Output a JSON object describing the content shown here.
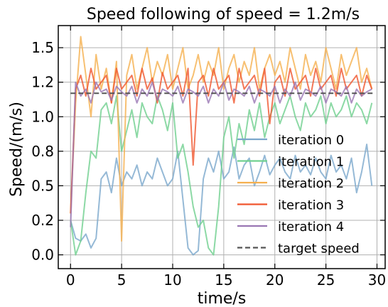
{
  "chart_data": {
    "type": "line",
    "title": "Speed following of speed = 1.2m/s",
    "xlabel": "time/s",
    "ylabel": "Speed/(m/s)",
    "xlim": [
      -1.2,
      30.8
    ],
    "ylim": [
      -0.1,
      1.66
    ],
    "xticks": [
      0,
      5,
      10,
      15,
      20,
      25,
      30
    ],
    "xtick_labels": [
      "0",
      "5",
      "10",
      "15",
      "20",
      "25",
      "30"
    ],
    "yticks": [
      0.0,
      0.25,
      0.5,
      0.75,
      1.0,
      1.25,
      1.5
    ],
    "ytick_labels": [
      "0.0",
      "0.2",
      "0.5",
      "0.8",
      "1.0",
      "1.2",
      "1.5"
    ],
    "grid": true,
    "legend_position": "lower-right",
    "target": {
      "name": "target speed",
      "value": 1.17,
      "color": "#555555",
      "style": "dashed"
    },
    "series": [
      {
        "name": "iteration 0",
        "color": "#7ba7cc",
        "x": [
          0,
          0.5,
          1,
          1.5,
          2,
          2.5,
          3,
          3.5,
          4,
          4.5,
          5,
          5.5,
          6,
          6.5,
          7,
          7.5,
          8,
          8.5,
          9,
          9.5,
          10,
          10.5,
          11,
          11.5,
          12,
          12.5,
          13,
          13.5,
          14,
          14.5,
          15,
          15.5,
          16,
          16.5,
          17,
          17.5,
          18,
          18.5,
          19,
          19.5,
          20,
          20.5,
          21,
          21.5,
          22,
          22.5,
          23,
          23.5,
          24,
          24.5,
          25,
          25.5,
          26,
          26.5,
          27,
          27.5,
          28,
          28.5,
          29,
          29.5
        ],
        "values": [
          0.25,
          0.12,
          0.1,
          0.15,
          0.05,
          0.12,
          0.55,
          0.6,
          0.45,
          0.7,
          0.5,
          0.6,
          0.55,
          0.65,
          0.5,
          0.6,
          0.55,
          0.7,
          0.6,
          0.5,
          0.55,
          0.75,
          0.4,
          0.05,
          0.0,
          0.03,
          0.55,
          0.7,
          0.6,
          0.75,
          0.55,
          0.6,
          0.78,
          0.55,
          0.65,
          0.7,
          0.5,
          0.6,
          0.72,
          0.58,
          0.65,
          0.7,
          0.6,
          0.55,
          0.72,
          0.6,
          0.65,
          0.58,
          0.7,
          0.6,
          0.55,
          0.72,
          0.6,
          0.65,
          0.55,
          0.7,
          0.45,
          0.6,
          0.8,
          0.5
        ]
      },
      {
        "name": "iteration 1",
        "color": "#6fd08f",
        "x": [
          0,
          0.5,
          1,
          1.5,
          2,
          2.5,
          3,
          3.5,
          4,
          4.5,
          5,
          5.5,
          6,
          6.5,
          7,
          7.5,
          8,
          8.5,
          9,
          9.5,
          10,
          10.5,
          11,
          11.5,
          12,
          12.5,
          13,
          13.5,
          14,
          14.5,
          15,
          15.5,
          16,
          16.5,
          17,
          17.5,
          18,
          18.5,
          19,
          19.5,
          20,
          20.5,
          21,
          21.5,
          22,
          22.5,
          23,
          23.5,
          24,
          24.5,
          25,
          25.5,
          26,
          26.5,
          27,
          27.5,
          28,
          28.5,
          29,
          29.5
        ],
        "values": [
          0.25,
          0.0,
          0.1,
          0.45,
          0.75,
          0.7,
          1.05,
          1.1,
          0.95,
          1.15,
          0.75,
          0.9,
          1.05,
          0.85,
          1.1,
          1.0,
          0.95,
          1.15,
          1.05,
          0.9,
          1.1,
          0.7,
          0.8,
          0.6,
          0.35,
          0.2,
          0.25,
          0.05,
          0.0,
          0.35,
          0.85,
          1.0,
          0.7,
          0.95,
          0.8,
          1.05,
          0.9,
          1.1,
          0.85,
          1.0,
          1.1,
          0.95,
          1.05,
          1.15,
          1.0,
          0.9,
          1.1,
          1.0,
          1.05,
          1.15,
          0.95,
          1.1,
          1.0,
          1.05,
          1.15,
          1.0,
          1.1,
          1.05,
          0.95,
          1.1
        ]
      },
      {
        "name": "iteration 2",
        "color": "#f5b04f",
        "x": [
          0,
          0.5,
          1,
          1.5,
          2,
          2.5,
          3,
          3.5,
          4,
          4.5,
          5,
          5.5,
          6,
          6.5,
          7,
          7.5,
          8,
          8.5,
          9,
          9.5,
          10,
          10.5,
          11,
          11.5,
          12,
          12.5,
          13,
          13.5,
          14,
          14.5,
          15,
          15.5,
          16,
          16.5,
          17,
          17.5,
          18,
          18.5,
          19,
          19.5,
          20,
          20.5,
          21,
          21.5,
          22,
          22.5,
          23,
          23.5,
          24,
          24.5,
          25,
          25.5,
          26,
          26.5,
          27,
          27.5,
          28,
          28.5,
          29,
          29.5
        ],
        "values": [
          0.3,
          1.1,
          1.58,
          1.3,
          1.0,
          1.45,
          1.2,
          1.35,
          1.1,
          1.4,
          0.1,
          1.3,
          1.45,
          1.2,
          1.35,
          1.5,
          1.25,
          1.4,
          1.3,
          1.45,
          1.2,
          1.35,
          1.5,
          1.2,
          1.3,
          1.45,
          1.25,
          1.4,
          1.3,
          1.5,
          1.2,
          1.35,
          1.45,
          1.25,
          1.4,
          1.3,
          1.5,
          1.2,
          1.35,
          1.45,
          1.3,
          1.4,
          1.25,
          1.5,
          1.35,
          1.2,
          1.45,
          1.3,
          1.4,
          1.25,
          1.5,
          1.35,
          1.2,
          1.45,
          1.3,
          1.4,
          1.5,
          1.25,
          1.35,
          1.2
        ]
      },
      {
        "name": "iteration 3",
        "color": "#f0562e",
        "x": [
          0,
          0.5,
          1,
          1.5,
          2,
          2.5,
          3,
          3.5,
          4,
          4.5,
          5,
          5.5,
          6,
          6.5,
          7,
          7.5,
          8,
          8.5,
          9,
          9.5,
          10,
          10.5,
          11,
          11.5,
          12,
          12.5,
          13,
          13.5,
          14,
          14.5,
          15,
          15.5,
          16,
          16.5,
          17,
          17.5,
          18,
          18.5,
          19,
          19.5,
          20,
          20.5,
          21,
          21.5,
          22,
          22.5,
          23,
          23.5,
          24,
          24.5,
          25,
          25.5,
          26,
          26.5,
          27,
          27.5,
          28,
          28.5,
          29,
          29.5
        ],
        "values": [
          0.3,
          1.2,
          1.3,
          1.15,
          1.35,
          1.2,
          1.25,
          1.3,
          1.1,
          1.35,
          1.2,
          1.25,
          1.3,
          1.15,
          1.35,
          1.2,
          1.28,
          1.1,
          1.32,
          1.2,
          1.25,
          1.3,
          1.15,
          1.35,
          0.65,
          1.25,
          1.3,
          1.15,
          1.35,
          1.2,
          1.25,
          1.3,
          1.1,
          1.35,
          1.2,
          1.25,
          1.3,
          1.15,
          1.35,
          0.95,
          1.25,
          1.3,
          1.15,
          1.35,
          1.2,
          1.25,
          1.3,
          1.15,
          1.35,
          1.2,
          1.25,
          1.3,
          1.15,
          1.35,
          1.2,
          1.25,
          1.3,
          1.15,
          1.3,
          1.2
        ]
      },
      {
        "name": "iteration 4",
        "color": "#9a77b4",
        "x": [
          0,
          0.5,
          1,
          1.5,
          2,
          2.5,
          3,
          3.5,
          4,
          4.5,
          5,
          5.5,
          6,
          6.5,
          7,
          7.5,
          8,
          8.5,
          9,
          9.5,
          10,
          10.5,
          11,
          11.5,
          12,
          12.5,
          13,
          13.5,
          14,
          14.5,
          15,
          15.5,
          16,
          16.5,
          17,
          17.5,
          18,
          18.5,
          19,
          19.5,
          20,
          20.5,
          21,
          21.5,
          22,
          22.5,
          23,
          23.5,
          24,
          24.5,
          25,
          25.5,
          26,
          26.5,
          27,
          27.5,
          28,
          28.5,
          29,
          29.5
        ],
        "values": [
          0.2,
          1.25,
          1.15,
          1.2,
          1.1,
          1.25,
          1.18,
          1.2,
          1.12,
          1.22,
          1.18,
          1.15,
          1.22,
          1.1,
          1.2,
          1.15,
          1.25,
          1.12,
          1.2,
          1.18,
          1.15,
          1.22,
          1.1,
          1.2,
          1.18,
          1.15,
          1.22,
          1.1,
          1.2,
          1.15,
          1.25,
          1.12,
          1.2,
          1.18,
          1.15,
          1.22,
          1.1,
          1.2,
          1.18,
          1.15,
          1.22,
          1.1,
          1.2,
          1.15,
          1.25,
          1.12,
          1.2,
          1.18,
          1.15,
          1.22,
          1.1,
          1.2,
          1.18,
          1.15,
          1.22,
          1.1,
          1.2,
          1.15,
          1.18,
          1.2
        ]
      }
    ]
  }
}
